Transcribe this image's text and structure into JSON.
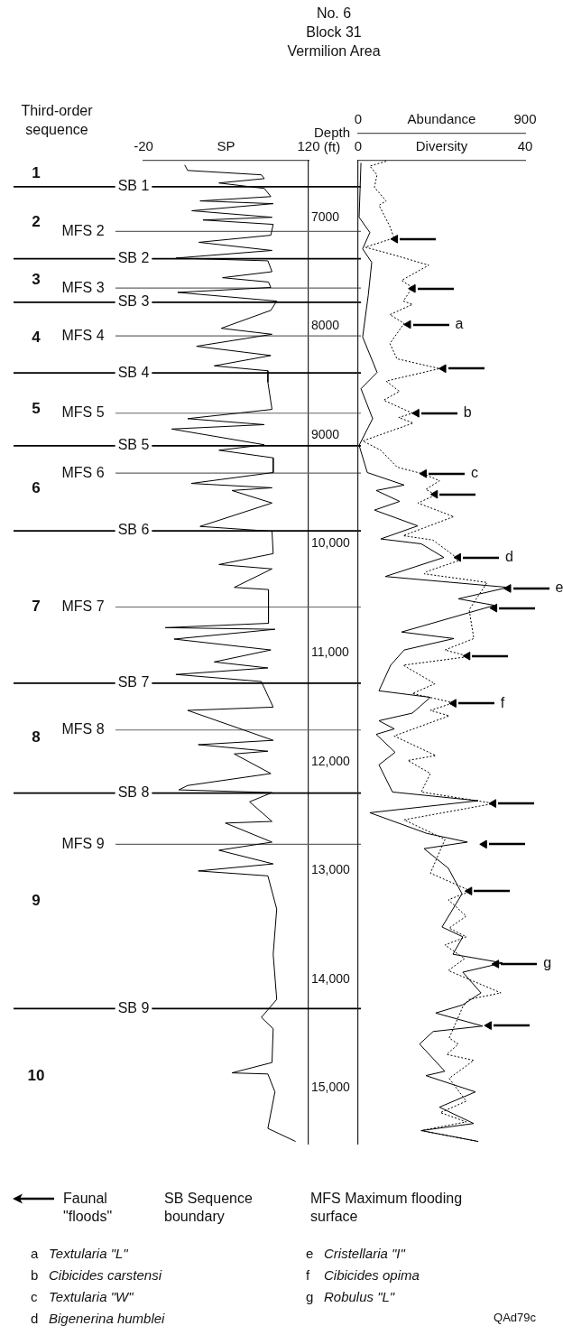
{
  "chart_data": [
    {
      "type": "line",
      "title": "No. 6",
      "subtitle": "Block 31 Vermilion Area",
      "xlabel": "SP",
      "ylabel": "Depth (ft)",
      "xlim": [
        -20,
        120
      ],
      "xticks": [
        -20,
        120
      ],
      "ylim": [
        15510,
        6480
      ],
      "yticks": [
        7000,
        8000,
        9000,
        {
          "value": 10000,
          "label": "10,000"
        },
        {
          "value": 11000,
          "label": "11,000"
        },
        {
          "value": 12000,
          "label": "12,000"
        },
        {
          "value": 13000,
          "label": "13,000"
        },
        {
          "value": 14000,
          "label": "14,000"
        },
        {
          "value": 15000,
          "label": "15,000"
        }
      ],
      "series": [
        {
          "type": "line",
          "color": "#000000",
          "x": [
            15,
            17.5,
            80,
            82.5,
            44,
            82.5,
            88,
            28,
            90,
            21,
            89,
            30.5,
            90,
            88,
            27,
            89,
            7.5,
            85.5,
            89,
            47,
            86,
            88,
            9,
            93,
            88,
            46,
            89,
            25,
            88,
            40,
            85.5,
            85.5,
            89,
            17.5,
            82.5,
            4,
            82.5,
            44,
            90,
            90,
            20.5,
            89,
            55,
            89,
            28,
            89,
            90,
            44,
            89,
            57,
            86,
            86,
            -1.5,
            91.5,
            6,
            88,
            40,
            85.5,
            7.5,
            80,
            90,
            17.5,
            90,
            26.5,
            85.5,
            57,
            88,
            17.5,
            10,
            89,
            70,
            89,
            49.5,
            89,
            44,
            90,
            26.5,
            85.5,
            93,
            90,
            93,
            80,
            90,
            89,
            55,
            85.5,
            91.5,
            85.5,
            109
          ],
          "values": [
            6520,
            6570,
            6610,
            6645,
            6685,
            6735,
            6810,
            6850,
            6875,
            6940,
            7000,
            7025,
            7065,
            7165,
            7230,
            7305,
            7375,
            7400,
            7500,
            7555,
            7595,
            7645,
            7690,
            7770,
            7855,
            8020,
            8075,
            8185,
            8270,
            8365,
            8410,
            8515,
            8765,
            8850,
            8905,
            8945,
            9090,
            9140,
            9210,
            9345,
            9445,
            9485,
            9510,
            9625,
            9840,
            9885,
            10090,
            10190,
            10230,
            10400,
            10420,
            10730,
            10770,
            10785,
            10875,
            10975,
            11085,
            11140,
            11200,
            11265,
            11500,
            11530,
            11805,
            11845,
            11905,
            11930,
            12110,
            12220,
            12260,
            12285,
            12370,
            12550,
            12565,
            12740,
            12815,
            12940,
            13005,
            13050,
            13355,
            13770,
            14185,
            14350,
            14455,
            14765,
            14860,
            14870,
            15035,
            15370,
            15490
          ]
        }
      ],
      "ref_lines": [
        {
          "axis": "y",
          "value": 6720,
          "label": "SB 1",
          "color": "#000000"
        },
        {
          "axis": "y",
          "value": 7130,
          "label": "MFS 2",
          "color": "#666666"
        },
        {
          "axis": "y",
          "value": 7380,
          "label": "SB 2",
          "color": "#000000"
        },
        {
          "axis": "y",
          "value": 7650,
          "label": "MFS 3",
          "color": "#666666"
        },
        {
          "axis": "y",
          "value": 7780,
          "label": "SB 3",
          "color": "#000000"
        },
        {
          "axis": "y",
          "value": 8090,
          "label": "MFS 4",
          "color": "#666666"
        },
        {
          "axis": "y",
          "value": 8430,
          "label": "SB 4",
          "color": "#000000"
        },
        {
          "axis": "y",
          "value": 8800,
          "label": "MFS 5",
          "color": "#666666"
        },
        {
          "axis": "y",
          "value": 9100,
          "label": "SB 5",
          "color": "#000000"
        },
        {
          "axis": "y",
          "value": 9350,
          "label": "MFS 6",
          "color": "#666666"
        },
        {
          "axis": "y",
          "value": 9880,
          "label": "SB 6",
          "color": "#000000"
        },
        {
          "axis": "y",
          "value": 10580,
          "label": "MFS 7",
          "color": "#666666"
        },
        {
          "axis": "y",
          "value": 11280,
          "label": "SB 7",
          "color": "#000000"
        },
        {
          "axis": "y",
          "value": 11710,
          "label": "MFS 8",
          "color": "#666666"
        },
        {
          "axis": "y",
          "value": 12290,
          "label": "SB 8",
          "color": "#000000"
        },
        {
          "axis": "y",
          "value": 12760,
          "label": "MFS 9",
          "color": "#666666"
        },
        {
          "axis": "y",
          "value": 14270,
          "label": "SB 9",
          "color": "#000000"
        }
      ],
      "annotations": [
        "Third-order sequence",
        "1",
        "2",
        "3",
        "4",
        "5",
        "6",
        "7",
        "8",
        "9",
        "10"
      ]
    },
    {
      "type": "line",
      "xlabel": "Abundance",
      "x2label": "Diversity",
      "tick_labels": "x",
      "legend": "bottom",
      "xlim": [
        0,
        900
      ],
      "xticks": [
        0,
        900
      ],
      "x2lim": [
        0,
        40
      ],
      "x2ticks": [
        0,
        40
      ],
      "ylim": [
        15510,
        6480
      ],
      "series": [
        {
          "type": "line",
          "color": "#000000",
          "x": [
            15,
            5,
            63,
            24,
            73,
            54,
            24,
            102,
            15,
            78,
            5,
            49,
            248,
            97,
            224,
            88,
            321,
            122,
            340,
            462,
            146,
            808,
            540,
            735,
            234,
            516,
            248,
            175,
            112,
            389,
            292,
            112,
            195,
            97,
            199,
            112,
            185,
            647,
            63,
            370,
            589,
            355,
            486,
            560,
            452,
            564,
            511,
            778,
            564,
            662,
            564,
            418,
            671,
            404,
            331,
            467,
            365,
            632,
            438,
            623,
            340,
            647
          ],
          "values": [
            6500,
            7000,
            7140,
            7290,
            7415,
            7720,
            8100,
            8425,
            8575,
            8850,
            9095,
            9345,
            9460,
            9510,
            9610,
            9690,
            9835,
            9955,
            10000,
            10125,
            10300,
            10400,
            10505,
            10565,
            10810,
            10870,
            10975,
            11115,
            11350,
            11410,
            11555,
            11625,
            11700,
            11750,
            11915,
            12030,
            12280,
            12360,
            12470,
            12660,
            12740,
            12800,
            12980,
            13215,
            13520,
            13610,
            13770,
            13850,
            13935,
            14125,
            14235,
            14310,
            14430,
            14480,
            14595,
            14845,
            14885,
            15035,
            15175,
            15325,
            15390,
            15490
          ]
        },
        {
          "type": "line",
          "color": "#000000",
          "axis": "x2",
          "line_style": "dotted",
          "x": [
            6.7,
            2.8,
            4.5,
            3.9,
            6.7,
            5,
            7.6,
            8.6,
            1.7,
            7.1,
            16.9,
            10.4,
            13,
            10.8,
            13,
            7.6,
            11,
            7.6,
            9.3,
            19.5,
            6.7,
            9.9,
            6.1,
            13,
            9.7,
            13.2,
            1.1,
            5.4,
            9.3,
            15.8,
            19.5,
            16.2,
            18.6,
            14.3,
            22.9,
            10.8,
            17.9,
            24.4,
            16.4,
            15.8,
            30.9,
            26.6,
            27.7,
            20.8,
            26.6,
            10.8,
            18.4,
            13,
            22.9,
            17.3,
            21.8,
            8.6,
            18.6,
            11.9,
            17.3,
            15.1,
            32.6,
            11,
            20.8,
            17.3,
            27,
            21.6,
            25.9,
            21.8,
            25.9,
            20.8,
            25.5,
            21.6,
            34.2,
            26.6,
            25.1,
            21.8,
            24,
            21.2,
            27.7,
            21.8,
            25.9,
            19.7,
            25.9,
            15.1,
            28.8
          ],
          "values": [
            6485,
            6530,
            6610,
            6725,
            6850,
            6890,
            7085,
            7190,
            7275,
            7330,
            7440,
            7580,
            7645,
            7770,
            7800,
            7895,
            7975,
            8160,
            8300,
            8390,
            8505,
            8600,
            8680,
            8800,
            8840,
            8890,
            9055,
            9140,
            9295,
            9360,
            9420,
            9500,
            9550,
            9625,
            9750,
            9925,
            9965,
            10150,
            10255,
            10275,
            10355,
            10605,
            10870,
            10975,
            11035,
            11115,
            11285,
            11375,
            11460,
            11530,
            11580,
            11765,
            11945,
            11990,
            12110,
            12280,
            12385,
            12535,
            12715,
            13025,
            13190,
            13270,
            13420,
            13530,
            13610,
            13685,
            13810,
            13920,
            14125,
            14185,
            14250,
            14540,
            14595,
            14690,
            14745,
            14910,
            15120,
            15225,
            15310,
            15390,
            15490
          ]
        },
        {
          "type": "scatter",
          "name": "Faunal \"floods\"",
          "color": "#000000",
          "x": [
            200,
            295,
            270,
            460,
            315,
            355,
            415,
            540,
            810,
            735,
            590,
            515,
            730,
            680,
            600,
            745,
            705
          ],
          "values": [
            7200,
            7655,
            7985,
            8390,
            8800,
            9355,
            9545,
            10125,
            10410,
            10590,
            11030,
            11465,
            12385,
            12760,
            13190,
            13860,
            14425
          ],
          "value_labels": [
            null,
            null,
            "a",
            null,
            "b",
            "c",
            null,
            "d",
            "e",
            null,
            null,
            "f",
            null,
            null,
            null,
            "g",
            null
          ]
        }
      ],
      "annotations": [
        "SB Sequence boundary",
        "MFS Maximum flooding surface",
        "a Textularia \"L\"",
        "b Cibicides carstensi",
        "c Textularia \"W\"",
        "d Bigenerina humblei",
        "e Cristellaria \"I\"",
        "f Cibicides opima",
        "g Robulus \"L\"",
        "QAd79c"
      ]
    }
  ]
}
